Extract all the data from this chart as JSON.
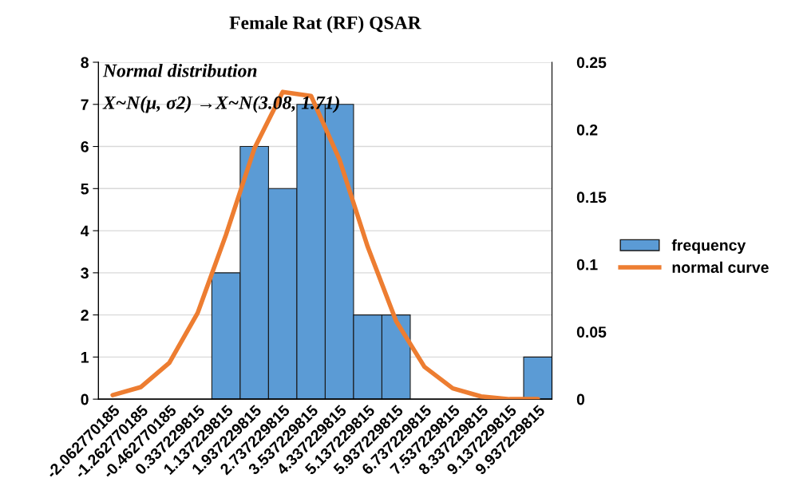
{
  "chart_data": {
    "type": "bar",
    "title": "Female Rat (RF) QSAR",
    "annotations": [
      "Normal distribution",
      "X~N(μ, σ2) →X~N(3.08, 1.71)"
    ],
    "categories": [
      "-2.062770185",
      "-1.262770185",
      "-0.462770185",
      "0.337229815",
      "1.137229815",
      "1.937229815",
      "2.737229815",
      "3.537229815",
      "4.337229815",
      "5.137229815",
      "5.937229815",
      "6.737229815",
      "7.537229815",
      "8.337229815",
      "9.137229815",
      "9.937229815"
    ],
    "series": [
      {
        "name": "frequency",
        "color": "#5b9bd5",
        "values": [
          0,
          0,
          0,
          0,
          3,
          6,
          5,
          7,
          7,
          2,
          2,
          0,
          0,
          0,
          0,
          1
        ]
      },
      {
        "name": "normal curve",
        "type": "line",
        "axis": "y2",
        "color": "#ed7d31",
        "values": [
          0.003,
          0.009,
          0.027,
          0.064,
          0.122,
          0.186,
          0.228,
          0.225,
          0.178,
          0.113,
          0.058,
          0.024,
          0.008,
          0.002,
          0.0,
          0.0
        ]
      }
    ],
    "ylim": [
      0,
      8
    ],
    "yticks": [
      0,
      1,
      2,
      3,
      4,
      5,
      6,
      7,
      8
    ],
    "y2lim": [
      0,
      0.25
    ],
    "y2ticks": [
      0,
      0.05,
      0.1,
      0.15,
      0.2,
      0.25
    ],
    "grid": "y",
    "legend": "right"
  }
}
